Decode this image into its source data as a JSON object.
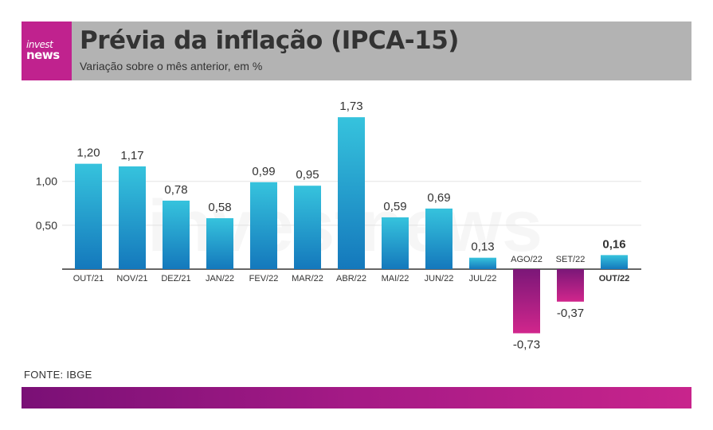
{
  "header": {
    "logo_line1": "invest",
    "logo_line2": "news",
    "title": "Prévia da inflação (IPCA-15)",
    "subtitle": "Variação sobre o mês anterior, em %"
  },
  "source": "FONTE: IBGE",
  "watermark": "investnews",
  "colors": {
    "positive_top": "#36c3dd",
    "positive_bottom": "#1478bc",
    "negative_top": "#7b1778",
    "negative_bottom": "#d1268c",
    "header_bg": "#b3b3b3",
    "brand": "#c0228e"
  },
  "chart_data": {
    "type": "bar",
    "categories": [
      "OUT/21",
      "NOV/21",
      "DEZ/21",
      "JAN/22",
      "FEV/22",
      "MAR/22",
      "ABR/22",
      "MAI/22",
      "JUN/22",
      "JUL/22",
      "AGO/22",
      "SET/22",
      "OUT/22"
    ],
    "values": [
      1.2,
      1.17,
      0.78,
      0.58,
      0.99,
      0.95,
      1.73,
      0.59,
      0.69,
      0.13,
      -0.73,
      -0.37,
      0.16
    ],
    "value_labels": [
      "1,20",
      "1,17",
      "0,78",
      "0,58",
      "0,99",
      "0,95",
      "1,73",
      "0,59",
      "0,69",
      "0,13",
      "-0,73",
      "-0,37",
      "0,16"
    ],
    "highlight_index": 12,
    "yticks": [
      0.5,
      1.0
    ],
    "ytick_labels": [
      "0,50",
      "1,00"
    ],
    "ylim": [
      -0.73,
      1.73
    ],
    "grid": true
  }
}
